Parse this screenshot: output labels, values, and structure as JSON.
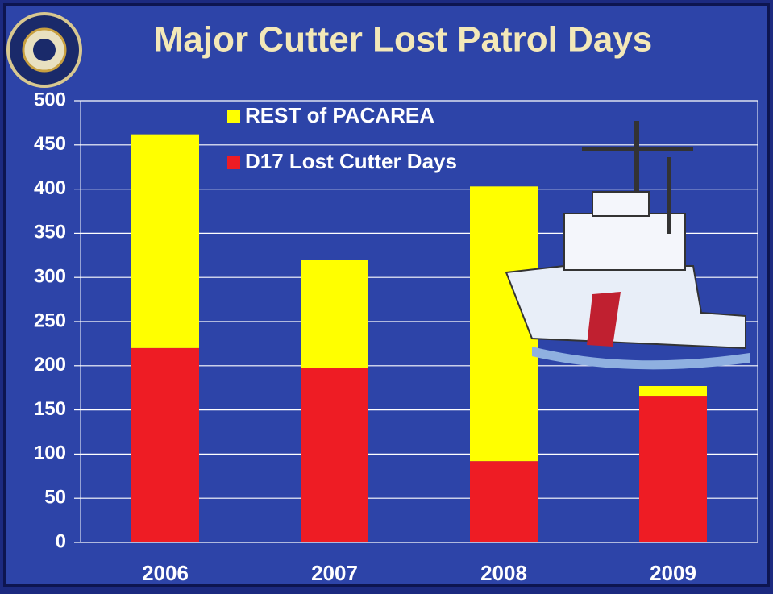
{
  "chart_data": {
    "type": "stacked-bar",
    "title": "Major Cutter Lost Patrol Days",
    "categories": [
      "2006",
      "2007",
      "2008",
      "2009"
    ],
    "series": [
      {
        "name": "REST of PACAREA",
        "color": "#ffff00",
        "values": [
          242,
          122,
          311,
          11
        ]
      },
      {
        "name": "D17 Lost Cutter Days",
        "color": "#ee1c24",
        "values": [
          220,
          198,
          92,
          166
        ]
      }
    ],
    "ylim": [
      0,
      500
    ],
    "yticks": [
      0,
      50,
      100,
      150,
      200,
      250,
      300,
      350,
      400,
      450,
      500
    ],
    "grid": true
  }
}
